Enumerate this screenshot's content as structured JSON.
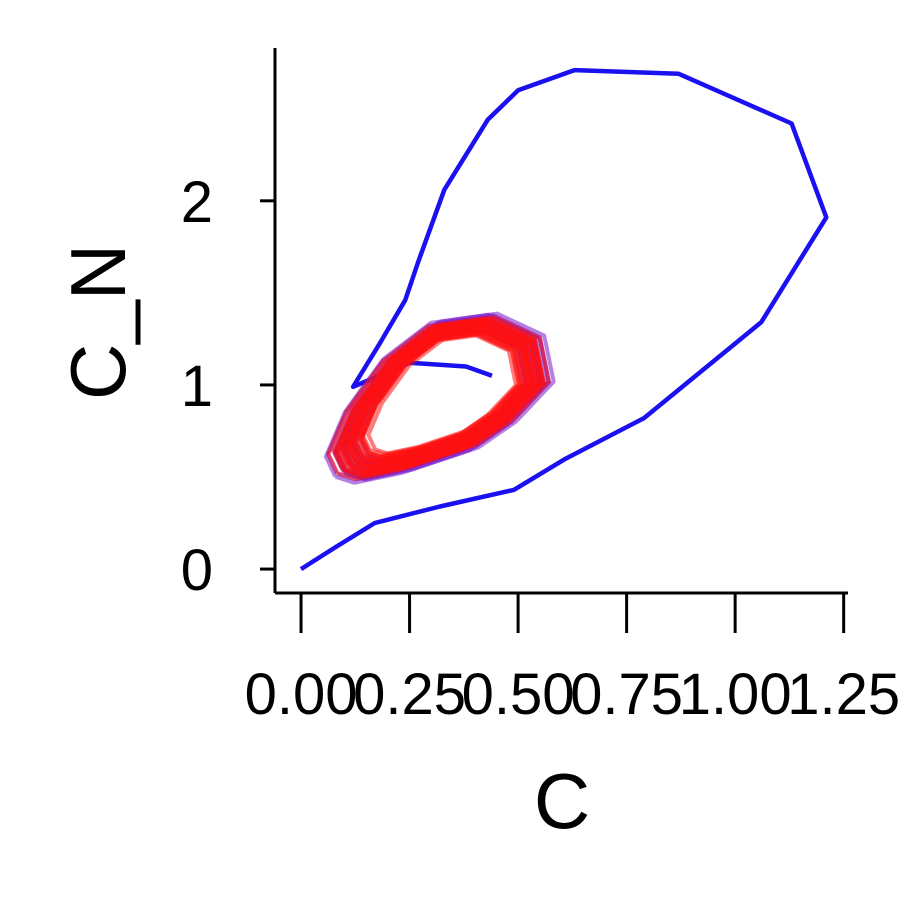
{
  "chart_data": {
    "type": "line",
    "title": "",
    "xlabel": "C",
    "ylabel": "C_N",
    "xlim": [
      -0.06,
      1.26
    ],
    "ylim": [
      -0.13,
      2.83
    ],
    "x_ticks": [
      0.0,
      0.25,
      0.5,
      0.75,
      1.0,
      1.25
    ],
    "x_tick_labels": [
      "0.00",
      "0.25",
      "0.50",
      "0.75",
      "1.00",
      "1.25"
    ],
    "y_ticks": [
      0,
      1,
      2
    ],
    "y_tick_labels": [
      "0",
      "1",
      "2"
    ],
    "grid": false,
    "legend": "none",
    "series": [
      {
        "color": "#1a10f0",
        "points": [
          [
            0.0,
            0.0
          ],
          [
            0.08,
            0.12
          ],
          [
            0.17,
            0.25
          ],
          [
            0.32,
            0.34
          ],
          [
            0.49,
            0.43
          ],
          [
            0.61,
            0.6
          ],
          [
            0.79,
            0.82
          ],
          [
            1.06,
            1.34
          ],
          [
            1.21,
            1.91
          ],
          [
            1.13,
            2.42
          ],
          [
            0.87,
            2.69
          ],
          [
            0.63,
            2.71
          ],
          [
            0.5,
            2.6
          ],
          [
            0.43,
            2.44
          ],
          [
            0.33,
            2.06
          ],
          [
            0.27,
            1.67
          ],
          [
            0.24,
            1.46
          ],
          [
            0.18,
            1.22
          ],
          [
            0.12,
            0.99
          ],
          [
            0.18,
            1.05
          ],
          [
            0.25,
            1.12
          ],
          [
            0.38,
            1.1
          ],
          [
            0.44,
            1.05
          ]
        ]
      },
      {
        "color": "#7a18c8",
        "loop_center": [
          0.33,
          0.99
        ],
        "loop_scale_range": [
          0.85,
          1.1
        ],
        "loop_count": 18
      },
      {
        "color": "#ff1010",
        "loop_center": [
          0.33,
          0.99
        ],
        "loop_scale_range": [
          0.78,
          1.05
        ],
        "loop_count": 26
      }
    ]
  }
}
